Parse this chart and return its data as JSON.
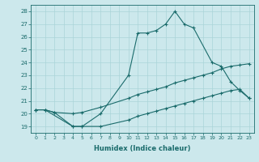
{
  "xlabel": "Humidex (Indice chaleur)",
  "background_color": "#cce8ec",
  "line_color": "#1a6b6b",
  "xlim": [
    -0.5,
    23.5
  ],
  "ylim": [
    18.5,
    28.5
  ],
  "xticks": [
    0,
    1,
    2,
    3,
    4,
    5,
    6,
    7,
    8,
    9,
    10,
    11,
    12,
    13,
    14,
    15,
    16,
    17,
    18,
    19,
    20,
    21,
    22,
    23
  ],
  "yticks": [
    19,
    20,
    21,
    22,
    23,
    24,
    25,
    26,
    27,
    28
  ],
  "series1_x": [
    0,
    1,
    4,
    5,
    7,
    10,
    11,
    12,
    13,
    14,
    15,
    16,
    17,
    19,
    20,
    21,
    22,
    23
  ],
  "series1_y": [
    20.3,
    20.3,
    19.0,
    19.0,
    20.0,
    23.0,
    26.3,
    26.3,
    26.5,
    27.0,
    28.0,
    27.0,
    26.7,
    24.0,
    23.7,
    22.5,
    21.8,
    21.2
  ],
  "series2_x": [
    0,
    1,
    2,
    4,
    5,
    7,
    10,
    11,
    12,
    13,
    14,
    15,
    16,
    17,
    18,
    19,
    20,
    21,
    22,
    23
  ],
  "series2_y": [
    20.3,
    20.3,
    20.1,
    20.0,
    20.1,
    20.5,
    21.2,
    21.5,
    21.7,
    21.9,
    22.1,
    22.4,
    22.6,
    22.8,
    23.0,
    23.2,
    23.5,
    23.7,
    23.8,
    23.9
  ],
  "series3_x": [
    0,
    1,
    2,
    4,
    5,
    7,
    10,
    11,
    12,
    13,
    14,
    15,
    16,
    17,
    18,
    19,
    20,
    21,
    22,
    23
  ],
  "series3_y": [
    20.3,
    20.3,
    20.1,
    19.0,
    19.0,
    19.0,
    19.5,
    19.8,
    20.0,
    20.2,
    20.4,
    20.6,
    20.8,
    21.0,
    21.2,
    21.4,
    21.6,
    21.8,
    21.9,
    21.2
  ],
  "grid_color": "#aad4d8",
  "tick_fontsize": 5,
  "xlabel_fontsize": 6
}
